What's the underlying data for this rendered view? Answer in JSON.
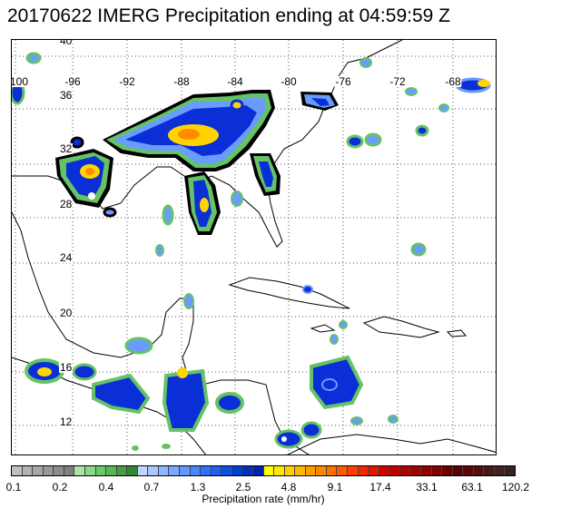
{
  "title": "20170622 IMERG Precipitation ending at 04:59:59 Z",
  "map": {
    "lat_labels": [
      "40",
      "36",
      "32",
      "28",
      "24",
      "20",
      "16",
      "12"
    ],
    "lon_labels": [
      "-100",
      "-96",
      "-92",
      "-88",
      "-84",
      "-80",
      "-76",
      "-72",
      "-68"
    ],
    "coastline_color": "#000000",
    "grid_style": "dotted",
    "outline_color": "#000000"
  },
  "legend": {
    "title": "Precipitation rate (mm/hr)",
    "tick_labels": [
      "0.1",
      "0.2",
      "0.4",
      "0.7",
      "1.3",
      "2.5",
      "4.8",
      "9.1",
      "17.4",
      "33.1",
      "63.1",
      "120.2"
    ],
    "colors": [
      "#bfbfbf",
      "#b3b3b3",
      "#a6a6a6",
      "#999999",
      "#8c8c8c",
      "#808080",
      "#a8e6a8",
      "#88d888",
      "#6cc86c",
      "#55b855",
      "#449e44",
      "#338833",
      "#c0d8ff",
      "#a8c8ff",
      "#8fb8ff",
      "#78a8ff",
      "#6098ff",
      "#4888ff",
      "#3070ff",
      "#2060f0",
      "#1050e0",
      "#0040d0",
      "#0030c0",
      "#0020b0",
      "#ffff00",
      "#ffe800",
      "#ffd000",
      "#ffb800",
      "#ffa000",
      "#ff8800",
      "#ff7000",
      "#ff5800",
      "#ff4000",
      "#f02800",
      "#e01800",
      "#d00000",
      "#c00000",
      "#b00000",
      "#a00000",
      "#900000",
      "#800000",
      "#700000",
      "#600000",
      "#580808",
      "#501010",
      "#481818",
      "#402020",
      "#382020"
    ]
  }
}
